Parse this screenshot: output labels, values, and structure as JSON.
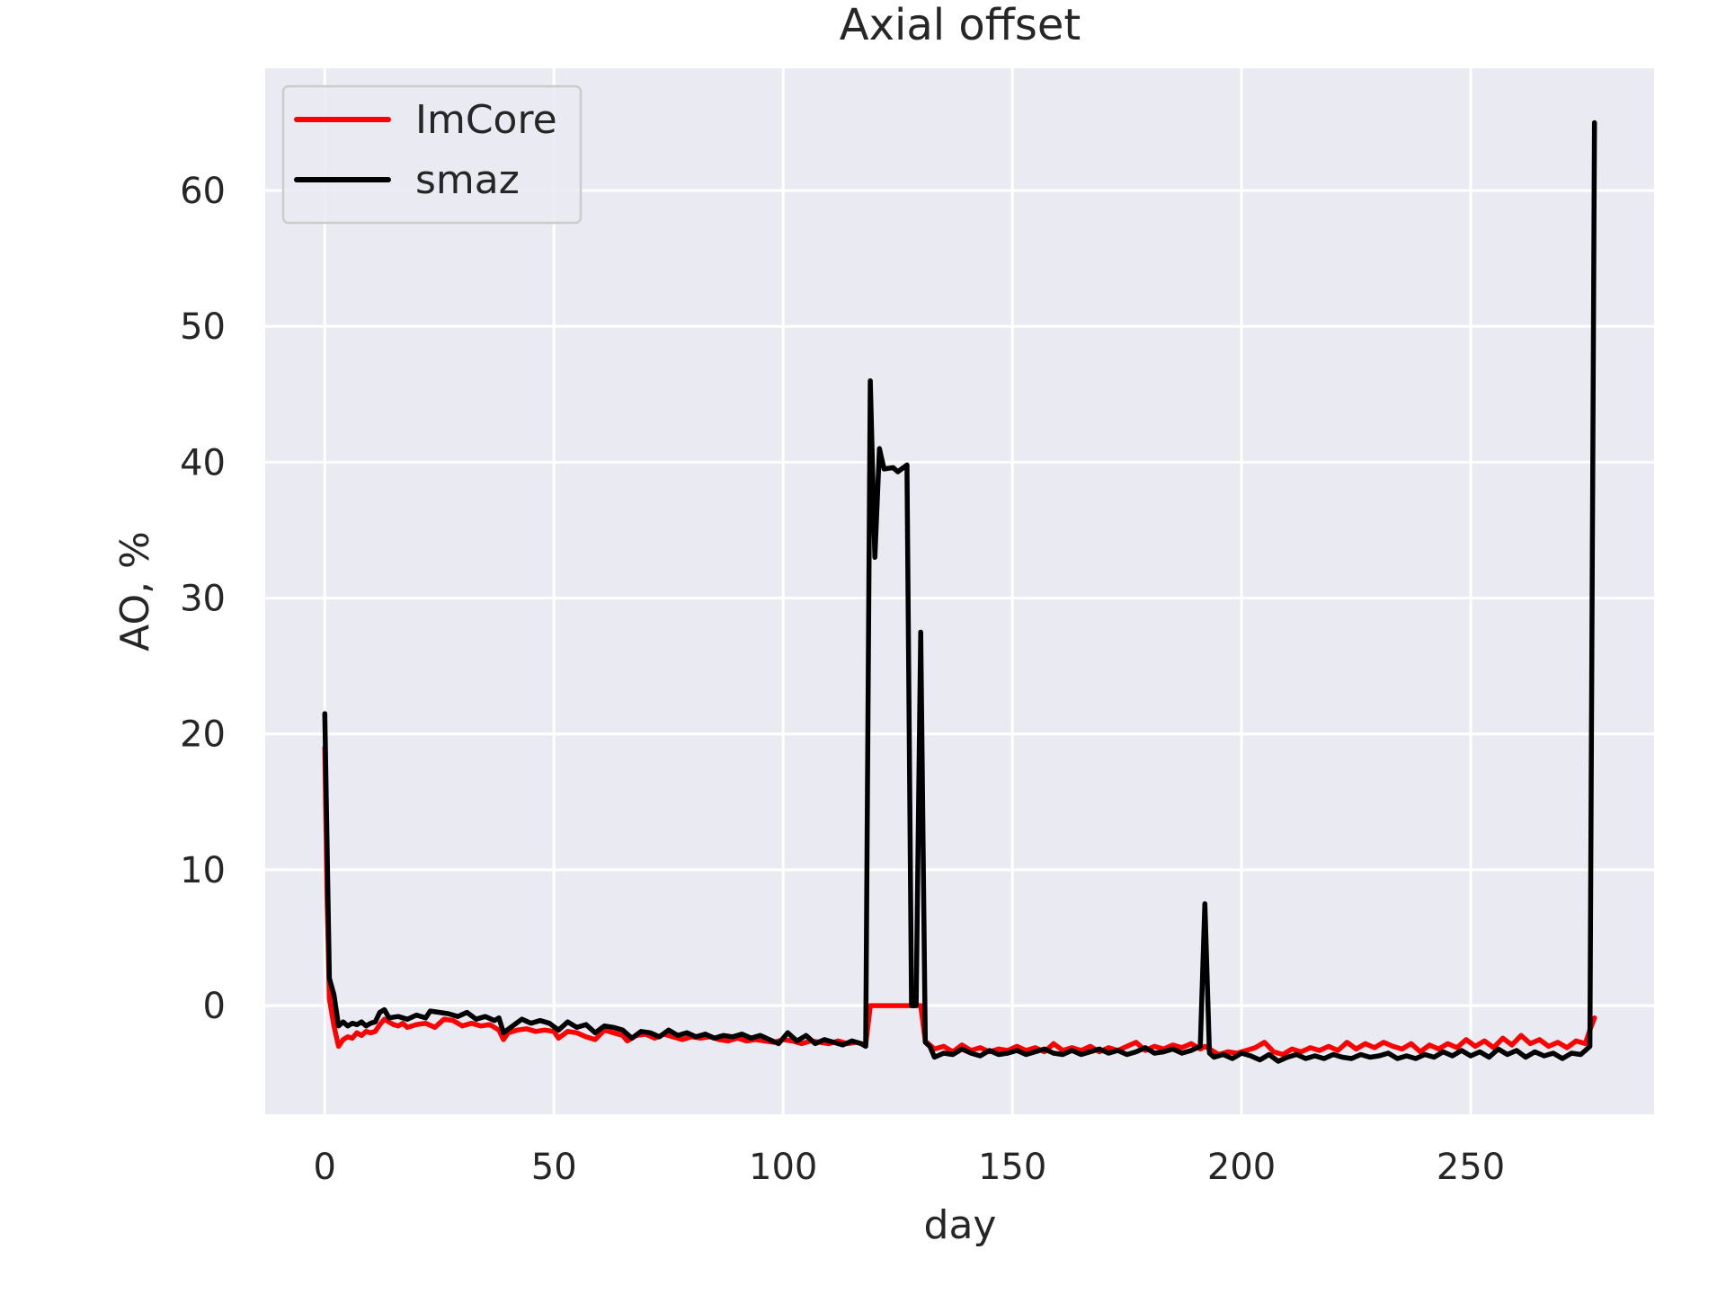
{
  "chart_data": {
    "type": "line",
    "title": "Axial offset",
    "xlabel": "day",
    "ylabel": "AO, %",
    "xlim": [
      -13,
      290
    ],
    "ylim": [
      -8,
      69
    ],
    "xticks": [
      0,
      50,
      100,
      150,
      200,
      250
    ],
    "yticks": [
      0,
      10,
      20,
      30,
      40,
      50,
      60
    ],
    "grid": true,
    "legend_position": "top-left",
    "colors": {
      "background": "#eaeaf2",
      "grid": "#ffffff",
      "text": "#262626"
    },
    "series": [
      {
        "name": "ImCore",
        "color": "#ff0000",
        "points": [
          [
            0,
            19.0
          ],
          [
            0.5,
            8.0
          ],
          [
            1,
            0.5
          ],
          [
            2,
            -1.5
          ],
          [
            3,
            -3.0
          ],
          [
            4,
            -2.5
          ],
          [
            5,
            -2.3
          ],
          [
            6,
            -2.4
          ],
          [
            7,
            -2.0
          ],
          [
            8,
            -2.2
          ],
          [
            9,
            -1.9
          ],
          [
            10,
            -2.0
          ],
          [
            11,
            -1.9
          ],
          [
            12,
            -1.4
          ],
          [
            13,
            -1.0
          ],
          [
            14,
            -1.2
          ],
          [
            15,
            -1.4
          ],
          [
            16,
            -1.5
          ],
          [
            17,
            -1.3
          ],
          [
            18,
            -1.6
          ],
          [
            20,
            -1.4
          ],
          [
            22,
            -1.3
          ],
          [
            24,
            -1.6
          ],
          [
            26,
            -1.0
          ],
          [
            28,
            -1.1
          ],
          [
            30,
            -1.5
          ],
          [
            32,
            -1.3
          ],
          [
            34,
            -1.5
          ],
          [
            36,
            -1.4
          ],
          [
            38,
            -1.8
          ],
          [
            39,
            -2.5
          ],
          [
            40,
            -2.0
          ],
          [
            42,
            -1.8
          ],
          [
            44,
            -1.7
          ],
          [
            46,
            -1.9
          ],
          [
            48,
            -1.8
          ],
          [
            50,
            -1.9
          ],
          [
            51,
            -2.4
          ],
          [
            53,
            -1.9
          ],
          [
            55,
            -2.0
          ],
          [
            57,
            -2.3
          ],
          [
            59,
            -2.5
          ],
          [
            61,
            -1.8
          ],
          [
            63,
            -2.0
          ],
          [
            65,
            -2.2
          ],
          [
            66,
            -2.6
          ],
          [
            68,
            -2.2
          ],
          [
            70,
            -2.1
          ],
          [
            72,
            -2.4
          ],
          [
            74,
            -2.1
          ],
          [
            76,
            -2.3
          ],
          [
            78,
            -2.5
          ],
          [
            80,
            -2.3
          ],
          [
            82,
            -2.4
          ],
          [
            84,
            -2.3
          ],
          [
            86,
            -2.5
          ],
          [
            88,
            -2.6
          ],
          [
            90,
            -2.4
          ],
          [
            92,
            -2.6
          ],
          [
            94,
            -2.5
          ],
          [
            96,
            -2.6
          ],
          [
            98,
            -2.7
          ],
          [
            100,
            -2.5
          ],
          [
            102,
            -2.6
          ],
          [
            104,
            -2.8
          ],
          [
            106,
            -2.6
          ],
          [
            108,
            -2.7
          ],
          [
            110,
            -2.8
          ],
          [
            112,
            -2.6
          ],
          [
            114,
            -2.8
          ],
          [
            116,
            -2.7
          ],
          [
            118,
            -2.9
          ],
          [
            119,
            0.0
          ],
          [
            121,
            0.0
          ],
          [
            124,
            0.0
          ],
          [
            127,
            0.0
          ],
          [
            129,
            0.0
          ],
          [
            130,
            0.0
          ],
          [
            131,
            -2.6
          ],
          [
            133,
            -3.2
          ],
          [
            135,
            -3.0
          ],
          [
            137,
            -3.4
          ],
          [
            139,
            -2.9
          ],
          [
            141,
            -3.3
          ],
          [
            143,
            -3.1
          ],
          [
            145,
            -3.4
          ],
          [
            147,
            -3.2
          ],
          [
            149,
            -3.3
          ],
          [
            151,
            -3.0
          ],
          [
            153,
            -3.3
          ],
          [
            155,
            -3.1
          ],
          [
            157,
            -3.4
          ],
          [
            159,
            -2.8
          ],
          [
            161,
            -3.3
          ],
          [
            163,
            -3.1
          ],
          [
            165,
            -3.3
          ],
          [
            167,
            -3.0
          ],
          [
            169,
            -3.4
          ],
          [
            171,
            -3.1
          ],
          [
            173,
            -3.3
          ],
          [
            175,
            -3.0
          ],
          [
            177,
            -2.7
          ],
          [
            179,
            -3.3
          ],
          [
            181,
            -3.0
          ],
          [
            183,
            -3.2
          ],
          [
            185,
            -2.9
          ],
          [
            187,
            -3.1
          ],
          [
            189,
            -2.8
          ],
          [
            191,
            -3.2
          ],
          [
            192,
            -3.0
          ],
          [
            193,
            -3.2
          ],
          [
            195,
            -3.6
          ],
          [
            197,
            -3.4
          ],
          [
            199,
            -3.5
          ],
          [
            201,
            -3.3
          ],
          [
            203,
            -3.1
          ],
          [
            205,
            -2.7
          ],
          [
            207,
            -3.4
          ],
          [
            209,
            -3.6
          ],
          [
            211,
            -3.2
          ],
          [
            213,
            -3.4
          ],
          [
            215,
            -3.1
          ],
          [
            217,
            -3.3
          ],
          [
            219,
            -3.0
          ],
          [
            221,
            -3.3
          ],
          [
            223,
            -2.7
          ],
          [
            225,
            -3.2
          ],
          [
            227,
            -2.8
          ],
          [
            229,
            -3.1
          ],
          [
            231,
            -2.7
          ],
          [
            233,
            -3.0
          ],
          [
            235,
            -3.2
          ],
          [
            237,
            -2.8
          ],
          [
            239,
            -3.4
          ],
          [
            241,
            -2.9
          ],
          [
            243,
            -3.2
          ],
          [
            245,
            -2.8
          ],
          [
            247,
            -3.1
          ],
          [
            249,
            -2.5
          ],
          [
            251,
            -3.0
          ],
          [
            253,
            -2.6
          ],
          [
            255,
            -3.1
          ],
          [
            257,
            -2.4
          ],
          [
            259,
            -2.9
          ],
          [
            261,
            -2.2
          ],
          [
            263,
            -2.8
          ],
          [
            265,
            -2.5
          ],
          [
            267,
            -3.0
          ],
          [
            269,
            -2.7
          ],
          [
            271,
            -3.1
          ],
          [
            273,
            -2.6
          ],
          [
            275,
            -2.8
          ],
          [
            276,
            -1.8
          ],
          [
            277,
            -0.9
          ]
        ]
      },
      {
        "name": "smaz",
        "color": "#000000",
        "points": [
          [
            0,
            21.5
          ],
          [
            1,
            2.0
          ],
          [
            2,
            0.8
          ],
          [
            3,
            -1.5
          ],
          [
            4,
            -1.2
          ],
          [
            5,
            -1.5
          ],
          [
            6,
            -1.3
          ],
          [
            7,
            -1.4
          ],
          [
            8,
            -1.2
          ],
          [
            9,
            -1.5
          ],
          [
            10,
            -1.3
          ],
          [
            11,
            -1.2
          ],
          [
            12,
            -0.5
          ],
          [
            13,
            -0.3
          ],
          [
            14,
            -0.9
          ],
          [
            16,
            -0.8
          ],
          [
            18,
            -1.0
          ],
          [
            20,
            -0.7
          ],
          [
            22,
            -0.9
          ],
          [
            23,
            -0.4
          ],
          [
            25,
            -0.5
          ],
          [
            27,
            -0.6
          ],
          [
            29,
            -0.8
          ],
          [
            31,
            -0.5
          ],
          [
            33,
            -1.0
          ],
          [
            35,
            -0.8
          ],
          [
            37,
            -1.1
          ],
          [
            38,
            -0.9
          ],
          [
            39,
            -2.0
          ],
          [
            41,
            -1.5
          ],
          [
            43,
            -1.0
          ],
          [
            45,
            -1.3
          ],
          [
            47,
            -1.1
          ],
          [
            49,
            -1.3
          ],
          [
            51,
            -1.8
          ],
          [
            53,
            -1.2
          ],
          [
            55,
            -1.6
          ],
          [
            57,
            -1.4
          ],
          [
            59,
            -2.0
          ],
          [
            61,
            -1.5
          ],
          [
            63,
            -1.6
          ],
          [
            65,
            -1.8
          ],
          [
            67,
            -2.4
          ],
          [
            69,
            -1.9
          ],
          [
            71,
            -2.0
          ],
          [
            73,
            -2.3
          ],
          [
            75,
            -1.8
          ],
          [
            77,
            -2.2
          ],
          [
            79,
            -2.0
          ],
          [
            81,
            -2.3
          ],
          [
            83,
            -2.1
          ],
          [
            85,
            -2.4
          ],
          [
            87,
            -2.2
          ],
          [
            89,
            -2.3
          ],
          [
            91,
            -2.1
          ],
          [
            93,
            -2.4
          ],
          [
            95,
            -2.2
          ],
          [
            97,
            -2.5
          ],
          [
            99,
            -2.8
          ],
          [
            101,
            -2.0
          ],
          [
            103,
            -2.6
          ],
          [
            105,
            -2.2
          ],
          [
            107,
            -2.8
          ],
          [
            109,
            -2.5
          ],
          [
            111,
            -2.7
          ],
          [
            113,
            -2.9
          ],
          [
            115,
            -2.6
          ],
          [
            117,
            -2.8
          ],
          [
            118,
            -3.0
          ],
          [
            119,
            46.0
          ],
          [
            120,
            33.0
          ],
          [
            121,
            41.0
          ],
          [
            122,
            39.5
          ],
          [
            124,
            39.6
          ],
          [
            125,
            39.3
          ],
          [
            127,
            39.8
          ],
          [
            128,
            0.0
          ],
          [
            129,
            0.0
          ],
          [
            130,
            27.5
          ],
          [
            131,
            -2.7
          ],
          [
            132,
            -3.0
          ],
          [
            133,
            -3.8
          ],
          [
            135,
            -3.5
          ],
          [
            137,
            -3.6
          ],
          [
            139,
            -3.2
          ],
          [
            141,
            -3.5
          ],
          [
            143,
            -3.7
          ],
          [
            145,
            -3.3
          ],
          [
            147,
            -3.6
          ],
          [
            149,
            -3.5
          ],
          [
            151,
            -3.3
          ],
          [
            153,
            -3.6
          ],
          [
            155,
            -3.4
          ],
          [
            157,
            -3.2
          ],
          [
            159,
            -3.5
          ],
          [
            161,
            -3.6
          ],
          [
            163,
            -3.3
          ],
          [
            165,
            -3.6
          ],
          [
            167,
            -3.4
          ],
          [
            169,
            -3.2
          ],
          [
            171,
            -3.5
          ],
          [
            173,
            -3.3
          ],
          [
            175,
            -3.6
          ],
          [
            177,
            -3.4
          ],
          [
            179,
            -3.1
          ],
          [
            181,
            -3.5
          ],
          [
            183,
            -3.4
          ],
          [
            185,
            -3.2
          ],
          [
            187,
            -3.5
          ],
          [
            189,
            -3.3
          ],
          [
            191,
            -3.0
          ],
          [
            192,
            7.5
          ],
          [
            193,
            -3.5
          ],
          [
            194,
            -3.8
          ],
          [
            196,
            -3.6
          ],
          [
            198,
            -3.9
          ],
          [
            200,
            -3.5
          ],
          [
            202,
            -3.7
          ],
          [
            204,
            -4.0
          ],
          [
            206,
            -3.6
          ],
          [
            208,
            -4.1
          ],
          [
            210,
            -3.8
          ],
          [
            212,
            -3.6
          ],
          [
            214,
            -3.9
          ],
          [
            216,
            -3.7
          ],
          [
            218,
            -3.9
          ],
          [
            220,
            -3.6
          ],
          [
            222,
            -3.8
          ],
          [
            224,
            -3.9
          ],
          [
            226,
            -3.6
          ],
          [
            228,
            -3.8
          ],
          [
            230,
            -3.7
          ],
          [
            232,
            -3.5
          ],
          [
            234,
            -3.9
          ],
          [
            236,
            -3.7
          ],
          [
            238,
            -3.9
          ],
          [
            240,
            -3.6
          ],
          [
            242,
            -3.8
          ],
          [
            244,
            -3.4
          ],
          [
            246,
            -3.7
          ],
          [
            248,
            -3.3
          ],
          [
            250,
            -3.7
          ],
          [
            252,
            -3.4
          ],
          [
            254,
            -3.8
          ],
          [
            256,
            -3.2
          ],
          [
            258,
            -3.6
          ],
          [
            260,
            -3.3
          ],
          [
            262,
            -3.8
          ],
          [
            264,
            -3.4
          ],
          [
            266,
            -3.7
          ],
          [
            268,
            -3.5
          ],
          [
            270,
            -3.9
          ],
          [
            272,
            -3.5
          ],
          [
            274,
            -3.6
          ],
          [
            276,
            -3.0
          ],
          [
            277,
            65.0
          ]
        ]
      }
    ]
  }
}
